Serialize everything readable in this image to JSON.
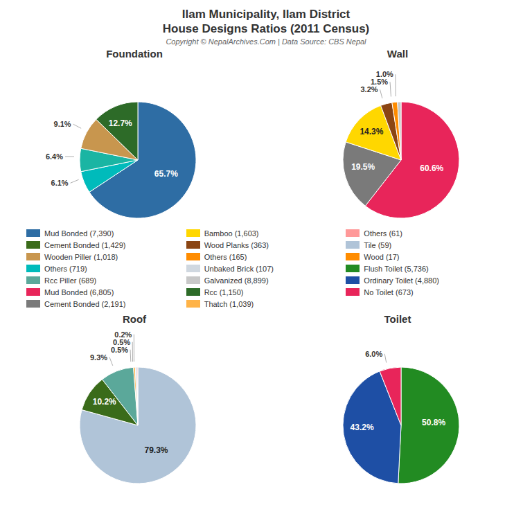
{
  "title": "Ilam Municipality, Ilam District",
  "subtitle": "House Designs Ratios (2011 Census)",
  "annotations": [
    "Copyright © NepalArchives.Com | Data Source: CBS Nepal"
  ],
  "series": [
    {
      "name": "Mud Bonded (7,390)",
      "color": "#2E6DA4"
    },
    {
      "name": "Cement Bonded (1,429)",
      "color": "#3A6B1A"
    },
    {
      "name": "Wooden Piller (1,018)",
      "color": "#C8964E"
    },
    {
      "name": "Others (719)",
      "color": "#00BBBB"
    },
    {
      "name": "Rcc Piller (689)",
      "color": "#5BA89A"
    },
    {
      "name": "Mud Bonded (6,805)",
      "color": "#E8255A"
    },
    {
      "name": "Cement Bonded (2,191)",
      "color": "#7A7A7A"
    },
    {
      "name": "Bamboo (1,603)",
      "color": "#FFD700"
    },
    {
      "name": "Wood Planks (363)",
      "color": "#8B4513"
    },
    {
      "name": "Others (165)",
      "color": "#FF8C00"
    },
    {
      "name": "Unbaked Brick (107)",
      "color": "#D0D8E0"
    },
    {
      "name": "Galvanized (8,899)",
      "color": "#C8C8C8"
    },
    {
      "name": "Rcc (1,150)",
      "color": "#2D6B28"
    },
    {
      "name": "Thatch (1,039)",
      "color": "#FFB347"
    },
    {
      "name": "Others (61)",
      "color": "#FF9999"
    },
    {
      "name": "Tile (59)",
      "color": "#B0C4D8"
    },
    {
      "name": "Wood (17)",
      "color": "#FF8C00"
    },
    {
      "name": "Flush Toilet (5,736)",
      "color": "#228B22"
    },
    {
      "name": "Ordinary Toilet (4,880)",
      "color": "#1E4FA5"
    },
    {
      "name": "No Toilet (673)",
      "color": "#E8255A"
    }
  ],
  "chart_data": [
    {
      "type": "pie",
      "title": "Foundation",
      "values": [
        65.7,
        6.1,
        6.4,
        9.1,
        12.7
      ],
      "value_labels": [
        "65.7%",
        "6.1%",
        "6.4%",
        "9.1%",
        "12.7%"
      ],
      "colors": [
        "#2E6DA4",
        "#00BBBB",
        "#1AB5A3",
        "#C8964E",
        "#2D6B28"
      ],
      "data_labels": true
    },
    {
      "type": "pie",
      "title": "Wall",
      "values": [
        60.6,
        19.5,
        14.3,
        3.2,
        1.5,
        1.0
      ],
      "value_labels": [
        "60.6%",
        "19.5%",
        "14.3%",
        "3.2%",
        "1.5%",
        "1.0%"
      ],
      "colors": [
        "#E8255A",
        "#7A7A7A",
        "#FFD700",
        "#8B4513",
        "#FF8C00",
        "#C8C8C8"
      ],
      "data_labels": true
    },
    {
      "type": "pie",
      "title": "Roof",
      "values": [
        79.3,
        10.2,
        9.3,
        0.5,
        0.5,
        0.2
      ],
      "value_labels": [
        "79.3%",
        "10.2%",
        "9.3%",
        "0.5%",
        "0.5%",
        "0.2%"
      ],
      "colors": [
        "#B0C4D8",
        "#3A6B1A",
        "#5BA89A",
        "#FFB347",
        "#D0D8E0",
        "#FF9999"
      ],
      "data_labels": true
    },
    {
      "type": "pie",
      "title": "Toilet",
      "values": [
        50.8,
        43.2,
        6.0
      ],
      "value_labels": [
        "50.8%",
        "43.2%",
        "6.0%"
      ],
      "colors": [
        "#228B22",
        "#1E4FA5",
        "#E8255A"
      ],
      "data_labels": true
    }
  ]
}
